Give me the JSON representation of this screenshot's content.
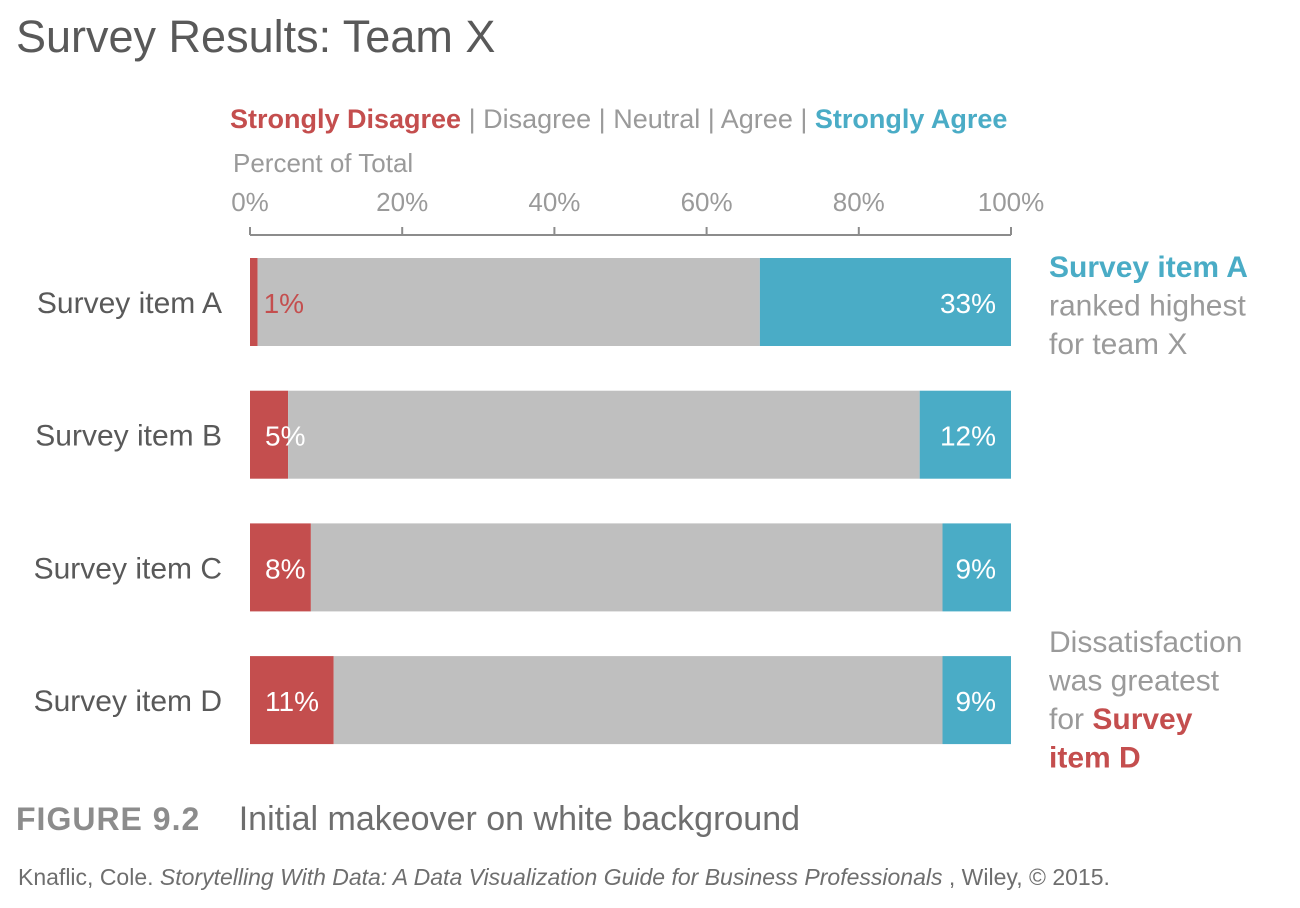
{
  "colors": {
    "strongly_disagree": "#c44e4e",
    "middle": "#bfbfbf",
    "strongly_agree": "#4aacc6",
    "text_dark": "#595959",
    "text_gray": "#9a9a9a",
    "axis": "#8c8c8c"
  },
  "chart_data": {
    "type": "bar",
    "orientation": "horizontal",
    "stacked": true,
    "title": "Survey Results: Team X",
    "legend": {
      "placement": "top",
      "separator": "|",
      "entries": [
        "Strongly Disagree",
        "Disagree",
        "Neutral",
        "Agree",
        "Strongly Agree"
      ]
    },
    "xlabel": "Percent of Total",
    "xlim": [
      0,
      100
    ],
    "x_ticks": [
      0,
      20,
      40,
      60,
      80,
      100
    ],
    "x_tick_labels": [
      "0%",
      "20%",
      "40%",
      "60%",
      "80%",
      "100%"
    ],
    "categories": [
      "Survey item A",
      "Survey item B",
      "Survey item C",
      "Survey item D"
    ],
    "series": [
      {
        "name": "Strongly Disagree",
        "values": [
          1,
          5,
          8,
          11
        ],
        "labels": [
          "1%",
          "5%",
          "8%",
          "11%"
        ]
      },
      {
        "name": "Disagree / Neutral / Agree",
        "values": [
          66,
          83,
          83,
          80
        ]
      },
      {
        "name": "Strongly Agree",
        "values": [
          33,
          12,
          9,
          9
        ],
        "labels": [
          "33%",
          "12%",
          "9%",
          "9%"
        ]
      }
    ],
    "annotations": [
      {
        "target": "Survey item A",
        "lines": [
          [
            {
              "text": "Survey item A",
              "emphasis": "strongly_agree"
            }
          ],
          [
            {
              "text": "ranked highest",
              "emphasis": "none"
            }
          ],
          [
            {
              "text": "for team X",
              "emphasis": "none"
            }
          ]
        ]
      },
      {
        "target": "Survey item D",
        "lines": [
          [
            {
              "text": "Dissatisfaction",
              "emphasis": "none"
            }
          ],
          [
            {
              "text": "was greatest",
              "emphasis": "none"
            }
          ],
          [
            {
              "text": "for ",
              "emphasis": "none"
            },
            {
              "text": "Survey",
              "emphasis": "strongly_disagree"
            }
          ],
          [
            {
              "text": "item D",
              "emphasis": "strongly_disagree"
            }
          ]
        ]
      }
    ]
  },
  "caption": {
    "figure_number": "FIGURE 9.2",
    "text": "Initial makeover on white background"
  },
  "source": {
    "before": "Knaflic, Cole. ",
    "book": "Storytelling With Data: A Data Visualization Guide for Business Professionals",
    "after": ", Wiley, © 2015."
  }
}
